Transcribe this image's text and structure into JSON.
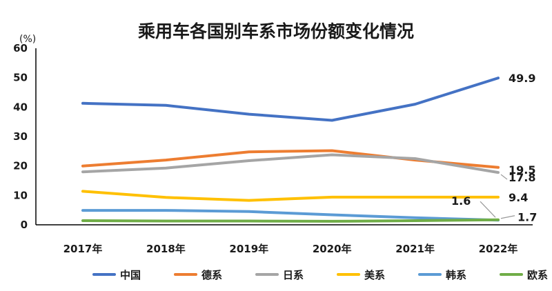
{
  "chart_data": {
    "type": "line",
    "title": "乘用车各国别车系市场份额变化情况",
    "ylabel": "(%)",
    "ylim": [
      0,
      60
    ],
    "yticks": [
      0,
      10,
      20,
      30,
      40,
      50,
      60
    ],
    "categories": [
      "2017年",
      "2018年",
      "2019年",
      "2020年",
      "2021年",
      "2022年"
    ],
    "grid": false,
    "legend_position": "bottom",
    "series": [
      {
        "name": "中国",
        "color": "#4472C4",
        "values": [
          41.3,
          40.6,
          37.6,
          35.5,
          41.0,
          49.9
        ],
        "end_label": "49.9"
      },
      {
        "name": "德系",
        "color": "#ED7D31",
        "values": [
          20.0,
          22.0,
          24.8,
          25.2,
          22.0,
          19.5
        ],
        "end_label": "19.5"
      },
      {
        "name": "日系",
        "color": "#A5A5A5",
        "values": [
          18.0,
          19.3,
          21.8,
          23.8,
          22.5,
          17.8
        ],
        "end_label": "17.8"
      },
      {
        "name": "美系",
        "color": "#FFC000",
        "values": [
          11.4,
          9.3,
          8.3,
          9.4,
          9.4,
          9.4
        ],
        "end_label": "9.4"
      },
      {
        "name": "韩系",
        "color": "#5B9BD5",
        "values": [
          4.9,
          4.9,
          4.5,
          3.4,
          2.4,
          1.6
        ],
        "end_label": "1.6"
      },
      {
        "name": "欧系",
        "color": "#70AD47",
        "values": [
          1.4,
          1.3,
          1.3,
          1.2,
          1.4,
          1.7
        ],
        "end_label": "1.7"
      }
    ]
  }
}
